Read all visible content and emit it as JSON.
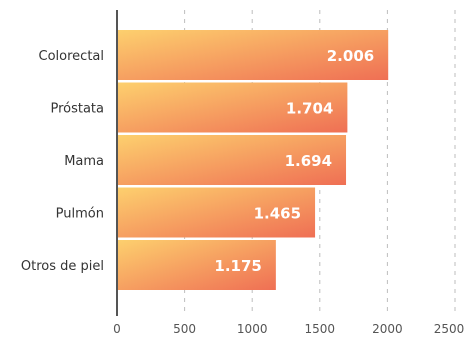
{
  "chart_data": {
    "type": "bar",
    "orientation": "horizontal",
    "categories": [
      "Colorectal",
      "Próstata",
      "Mama",
      "Pulmón",
      "Otros de piel"
    ],
    "values": [
      2006,
      1704,
      1694,
      1465,
      1175
    ],
    "value_labels": [
      "2.006",
      "1.704",
      "1.694",
      "1.465",
      "1.175"
    ],
    "xlim": [
      0,
      2500
    ],
    "xticks": [
      0,
      500,
      1000,
      1500,
      2000,
      2500
    ],
    "xtick_labels": [
      "0",
      "500",
      "1000",
      "1500",
      "2000",
      "2500"
    ],
    "grid": true,
    "colors": {
      "bar_start": "#fdd06e",
      "bar_end": "#ef6f54",
      "axis": "#555555",
      "grid": "#bdbdbd"
    }
  }
}
